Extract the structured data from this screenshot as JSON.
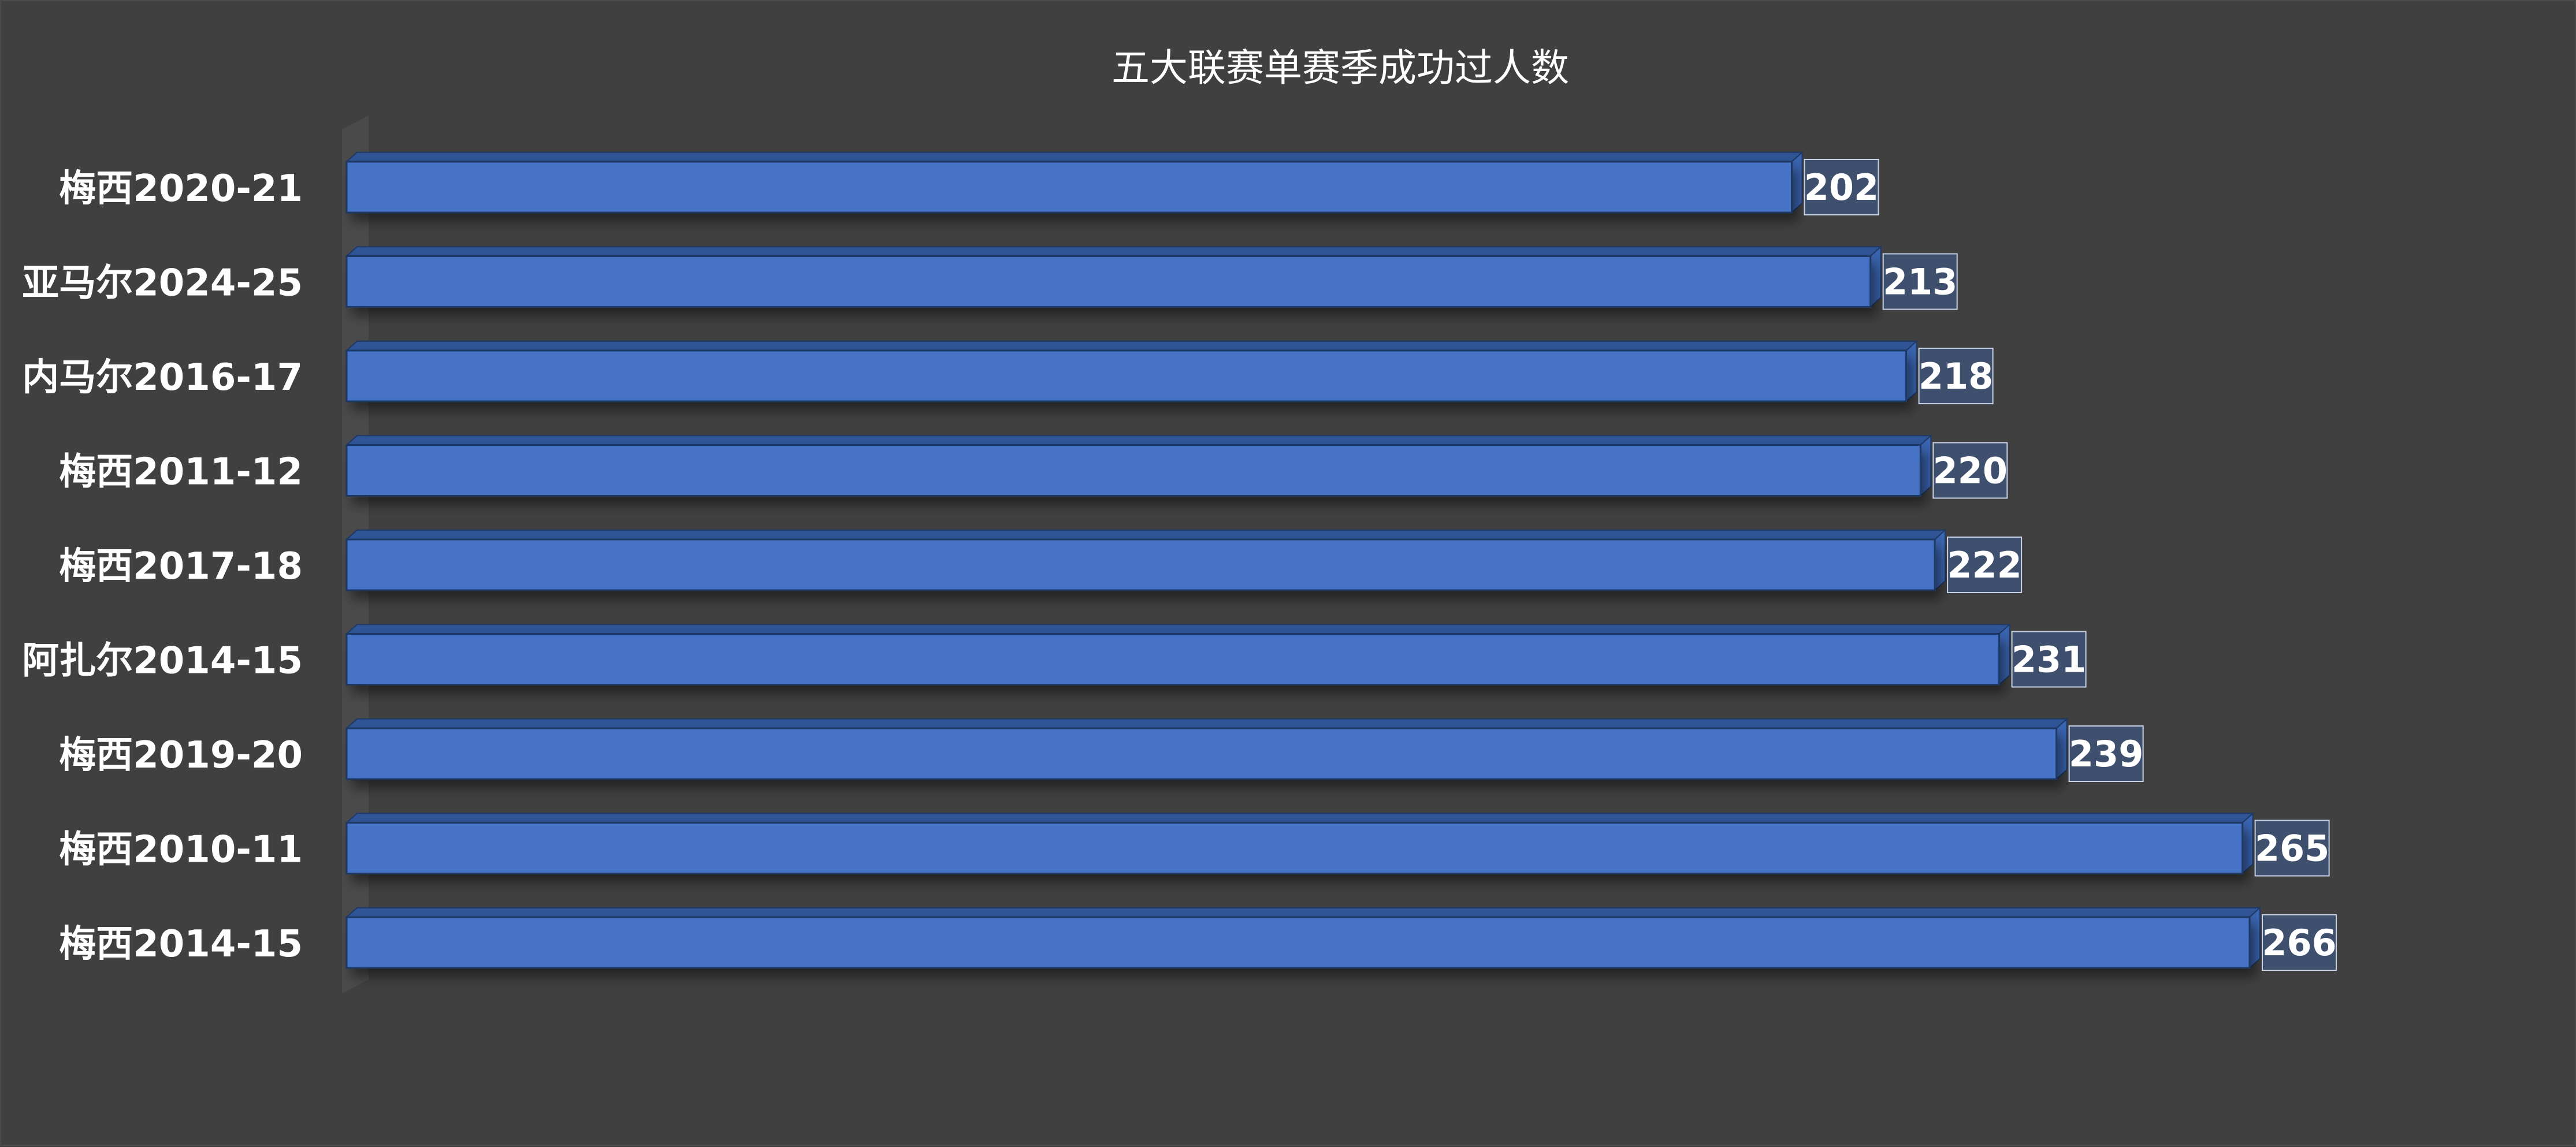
{
  "chart_data": {
    "type": "bar",
    "orientation": "horizontal",
    "title": "五大联赛单赛季成功过人数",
    "categories": [
      "梅西2020-21",
      "亚马尔2024-25",
      "内马尔2016-17",
      "梅西2011-12",
      "梅西2017-18",
      "阿扎尔2014-15",
      "梅西2019-20",
      "梅西2010-11",
      "梅西2014-15"
    ],
    "values": [
      202,
      213,
      218,
      220,
      222,
      231,
      239,
      265,
      266
    ],
    "xlim": [
      0,
      266
    ],
    "grid": false,
    "legend": "none",
    "colors": {
      "background": "#404040",
      "bar_front": "#4472C4",
      "bar_top": "#2F5597",
      "bar_end": "#3A64B0",
      "bar_edge": "#1F3864",
      "label_text": "#FFFFFF",
      "label_box_border": "#C8D2E6"
    }
  }
}
